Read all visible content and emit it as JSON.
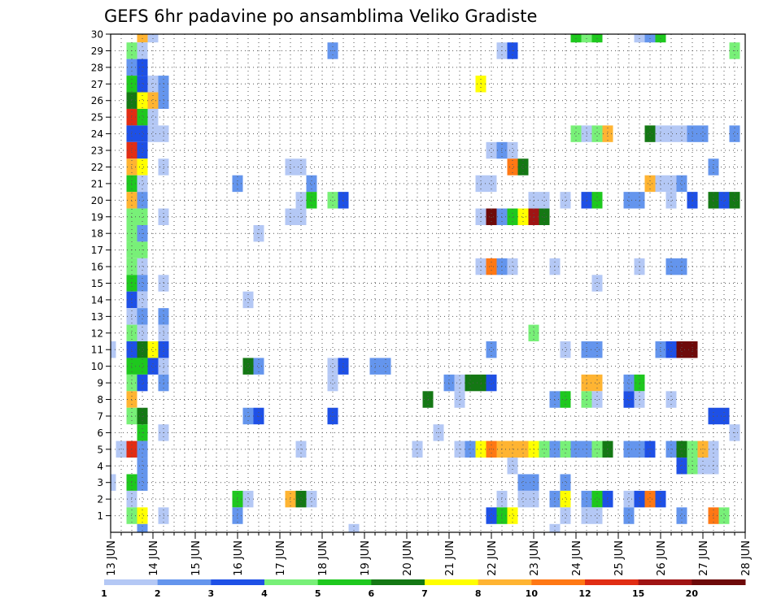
{
  "chart_data": {
    "type": "heatmap",
    "title": "GEFS 6hr padavine po ansamblima Veliko Gradiste",
    "xlabel": "",
    "ylabel": "",
    "x_tick_labels": [
      "13 JUN",
      "14 JUN",
      "15 JUN",
      "16 JUN",
      "17 JUN",
      "18 JUN",
      "19 JUN",
      "20 JUN",
      "21 JUN",
      "22 JUN",
      "23 JUN",
      "24 JUN",
      "25 JUN",
      "26 JUN",
      "27 JUN",
      "28 JUN"
    ],
    "y_tick_labels": [
      "1",
      "2",
      "3",
      "4",
      "5",
      "6",
      "7",
      "8",
      "9",
      "10",
      "11",
      "12",
      "13",
      "14",
      "15",
      "16",
      "17",
      "18",
      "19",
      "20",
      "21",
      "22",
      "23",
      "24",
      "25",
      "26",
      "27",
      "28",
      "29",
      "30"
    ],
    "xlim_days": [
      13,
      28
    ],
    "ylim_members": [
      0,
      30
    ],
    "grid": "dotted",
    "colorbar": {
      "tick_labels": [
        "1",
        "2",
        "3",
        "4",
        "5",
        "6",
        "7",
        "8",
        "10",
        "12",
        "15",
        "20"
      ],
      "colors": [
        "#b4c8f5",
        "#6495ed",
        "#1e50e6",
        "#78f078",
        "#1ec81e",
        "#147814",
        "#ffff00",
        "#ffb432",
        "#ff7814",
        "#e12d14",
        "#a01414",
        "#6e0a0a"
      ]
    },
    "cells": [
      [
        30,
        13.75,
        "#ffb432"
      ],
      [
        30,
        14.0,
        "#b4c8f5"
      ],
      [
        30,
        24.0,
        "#1ec81e"
      ],
      [
        30,
        24.25,
        "#78f078"
      ],
      [
        30,
        24.5,
        "#1ec81e"
      ],
      [
        30,
        25.5,
        "#b4c8f5"
      ],
      [
        30,
        25.75,
        "#6495ed"
      ],
      [
        30,
        26.0,
        "#1ec81e"
      ],
      [
        29,
        13.5,
        "#78f078"
      ],
      [
        29,
        13.75,
        "#b4c8f5"
      ],
      [
        29,
        18.25,
        "#6495ed"
      ],
      [
        29,
        22.25,
        "#b4c8f5"
      ],
      [
        29,
        22.5,
        "#1e50e6"
      ],
      [
        29,
        27.75,
        "#78f078"
      ],
      [
        28,
        13.5,
        "#6495ed"
      ],
      [
        28,
        13.75,
        "#1e50e6"
      ],
      [
        27,
        13.5,
        "#1ec81e"
      ],
      [
        27,
        13.75,
        "#1e50e6"
      ],
      [
        27,
        14.0,
        "#b4c8f5"
      ],
      [
        27,
        14.25,
        "#6495ed"
      ],
      [
        27,
        21.75,
        "#ffff00"
      ],
      [
        26,
        13.5,
        "#147814"
      ],
      [
        26,
        13.75,
        "#ffff00"
      ],
      [
        26,
        14.0,
        "#ffb432"
      ],
      [
        26,
        14.25,
        "#6495ed"
      ],
      [
        25,
        13.5,
        "#e12d14"
      ],
      [
        25,
        13.75,
        "#1ec81e"
      ],
      [
        25,
        14.0,
        "#b4c8f5"
      ],
      [
        24,
        13.5,
        "#1e50e6"
      ],
      [
        24,
        13.75,
        "#1e50e6"
      ],
      [
        24,
        14.0,
        "#b4c8f5"
      ],
      [
        24,
        14.25,
        "#b4c8f5"
      ],
      [
        24,
        24.0,
        "#78f078"
      ],
      [
        24,
        24.25,
        "#b4c8f5"
      ],
      [
        24,
        24.5,
        "#78f078"
      ],
      [
        24,
        24.75,
        "#ffb432"
      ],
      [
        24,
        25.75,
        "#147814"
      ],
      [
        24,
        26.0,
        "#b4c8f5"
      ],
      [
        24,
        26.25,
        "#b4c8f5"
      ],
      [
        24,
        26.5,
        "#b4c8f5"
      ],
      [
        24,
        26.75,
        "#6495ed"
      ],
      [
        24,
        27.0,
        "#6495ed"
      ],
      [
        24,
        27.75,
        "#6495ed"
      ],
      [
        23,
        13.5,
        "#e12d14"
      ],
      [
        23,
        13.75,
        "#1e50e6"
      ],
      [
        23,
        22.0,
        "#b4c8f5"
      ],
      [
        23,
        22.25,
        "#6495ed"
      ],
      [
        23,
        22.5,
        "#b4c8f5"
      ],
      [
        22,
        13.5,
        "#ffb432"
      ],
      [
        22,
        13.75,
        "#ffff00"
      ],
      [
        22,
        14.25,
        "#b4c8f5"
      ],
      [
        22,
        17.25,
        "#b4c8f5"
      ],
      [
        22,
        17.5,
        "#b4c8f5"
      ],
      [
        22,
        22.5,
        "#ff7814"
      ],
      [
        22,
        22.75,
        "#147814"
      ],
      [
        22,
        27.25,
        "#6495ed"
      ],
      [
        21,
        13.5,
        "#1ec81e"
      ],
      [
        21,
        13.75,
        "#b4c8f5"
      ],
      [
        21,
        16.0,
        "#6495ed"
      ],
      [
        21,
        17.75,
        "#6495ed"
      ],
      [
        21,
        21.75,
        "#b4c8f5"
      ],
      [
        21,
        22.0,
        "#b4c8f5"
      ],
      [
        21,
        25.75,
        "#ffb432"
      ],
      [
        21,
        26.0,
        "#b4c8f5"
      ],
      [
        21,
        26.25,
        "#b4c8f5"
      ],
      [
        21,
        26.5,
        "#6495ed"
      ],
      [
        20,
        13.5,
        "#ffb432"
      ],
      [
        20,
        13.75,
        "#6495ed"
      ],
      [
        20,
        17.5,
        "#b4c8f5"
      ],
      [
        20,
        17.75,
        "#1ec81e"
      ],
      [
        20,
        18.25,
        "#78f078"
      ],
      [
        20,
        18.5,
        "#1e50e6"
      ],
      [
        20,
        23.0,
        "#b4c8f5"
      ],
      [
        20,
        23.25,
        "#b4c8f5"
      ],
      [
        20,
        23.75,
        "#b4c8f5"
      ],
      [
        20,
        24.25,
        "#1e50e6"
      ],
      [
        20,
        24.5,
        "#1ec81e"
      ],
      [
        20,
        25.25,
        "#6495ed"
      ],
      [
        20,
        25.5,
        "#6495ed"
      ],
      [
        20,
        26.25,
        "#b4c8f5"
      ],
      [
        20,
        26.75,
        "#1e50e6"
      ],
      [
        20,
        27.25,
        "#147814"
      ],
      [
        20,
        27.5,
        "#1e50e6"
      ],
      [
        20,
        27.75,
        "#147814"
      ],
      [
        19,
        13.5,
        "#78f078"
      ],
      [
        19,
        13.75,
        "#78f078"
      ],
      [
        19,
        14.25,
        "#b4c8f5"
      ],
      [
        19,
        17.25,
        "#b4c8f5"
      ],
      [
        19,
        17.5,
        "#b4c8f5"
      ],
      [
        19,
        21.75,
        "#b4c8f5"
      ],
      [
        19,
        22.0,
        "#6e0a0a"
      ],
      [
        19,
        22.25,
        "#6495ed"
      ],
      [
        19,
        22.5,
        "#1ec81e"
      ],
      [
        19,
        22.75,
        "#ffff00"
      ],
      [
        19,
        23.0,
        "#a01414"
      ],
      [
        19,
        23.25,
        "#147814"
      ],
      [
        18,
        13.5,
        "#78f078"
      ],
      [
        18,
        13.75,
        "#6495ed"
      ],
      [
        18,
        16.5,
        "#b4c8f5"
      ],
      [
        17,
        13.5,
        "#78f078"
      ],
      [
        17,
        13.75,
        "#78f078"
      ],
      [
        16,
        13.5,
        "#78f078"
      ],
      [
        16,
        13.75,
        "#b4c8f5"
      ],
      [
        16,
        21.75,
        "#b4c8f5"
      ],
      [
        16,
        22.0,
        "#ff7814"
      ],
      [
        16,
        22.25,
        "#6495ed"
      ],
      [
        16,
        22.5,
        "#b4c8f5"
      ],
      [
        16,
        23.5,
        "#b4c8f5"
      ],
      [
        16,
        25.5,
        "#b4c8f5"
      ],
      [
        16,
        26.25,
        "#6495ed"
      ],
      [
        16,
        26.5,
        "#6495ed"
      ],
      [
        15,
        13.5,
        "#1ec81e"
      ],
      [
        15,
        13.75,
        "#6495ed"
      ],
      [
        15,
        14.25,
        "#b4c8f5"
      ],
      [
        15,
        24.5,
        "#b4c8f5"
      ],
      [
        14,
        13.5,
        "#1e50e6"
      ],
      [
        14,
        13.75,
        "#b4c8f5"
      ],
      [
        14,
        16.25,
        "#b4c8f5"
      ],
      [
        13,
        13.5,
        "#b4c8f5"
      ],
      [
        13,
        13.75,
        "#6495ed"
      ],
      [
        13,
        14.25,
        "#6495ed"
      ],
      [
        12,
        13.5,
        "#78f078"
      ],
      [
        12,
        13.75,
        "#b4c8f5"
      ],
      [
        12,
        14.25,
        "#b4c8f5"
      ],
      [
        12,
        23.0,
        "#78f078"
      ],
      [
        11,
        13.0,
        "#b4c8f5"
      ],
      [
        11,
        13.5,
        "#1e50e6"
      ],
      [
        11,
        13.75,
        "#147814"
      ],
      [
        11,
        14.0,
        "#ffff00"
      ],
      [
        11,
        14.25,
        "#1e50e6"
      ],
      [
        11,
        22.0,
        "#6495ed"
      ],
      [
        11,
        23.75,
        "#b4c8f5"
      ],
      [
        11,
        24.25,
        "#6495ed"
      ],
      [
        11,
        24.5,
        "#6495ed"
      ],
      [
        11,
        26.0,
        "#6495ed"
      ],
      [
        11,
        26.25,
        "#1e50e6"
      ],
      [
        11,
        26.5,
        "#6e0a0a"
      ],
      [
        11,
        26.75,
        "#6e0a0a"
      ],
      [
        10,
        13.5,
        "#1ec81e"
      ],
      [
        10,
        13.75,
        "#1ec81e"
      ],
      [
        10,
        14.0,
        "#1e50e6"
      ],
      [
        10,
        14.25,
        "#b4c8f5"
      ],
      [
        10,
        16.25,
        "#147814"
      ],
      [
        10,
        16.5,
        "#6495ed"
      ],
      [
        10,
        18.25,
        "#b4c8f5"
      ],
      [
        10,
        18.5,
        "#1e50e6"
      ],
      [
        10,
        19.25,
        "#6495ed"
      ],
      [
        10,
        19.5,
        "#6495ed"
      ],
      [
        9,
        13.5,
        "#78f078"
      ],
      [
        9,
        13.75,
        "#1e50e6"
      ],
      [
        9,
        14.25,
        "#6495ed"
      ],
      [
        9,
        18.25,
        "#b4c8f5"
      ],
      [
        9,
        21.0,
        "#6495ed"
      ],
      [
        9,
        21.25,
        "#b4c8f5"
      ],
      [
        9,
        21.5,
        "#147814"
      ],
      [
        9,
        21.75,
        "#147814"
      ],
      [
        9,
        22.0,
        "#1e50e6"
      ],
      [
        9,
        24.25,
        "#ffb432"
      ],
      [
        9,
        24.5,
        "#ffb432"
      ],
      [
        9,
        25.25,
        "#6495ed"
      ],
      [
        9,
        25.5,
        "#1ec81e"
      ],
      [
        8,
        13.5,
        "#ffb432"
      ],
      [
        8,
        20.5,
        "#147814"
      ],
      [
        8,
        21.25,
        "#b4c8f5"
      ],
      [
        8,
        23.5,
        "#6495ed"
      ],
      [
        8,
        23.75,
        "#1ec81e"
      ],
      [
        8,
        24.25,
        "#78f078"
      ],
      [
        8,
        24.5,
        "#b4c8f5"
      ],
      [
        8,
        25.25,
        "#1e50e6"
      ],
      [
        8,
        25.5,
        "#b4c8f5"
      ],
      [
        8,
        26.25,
        "#b4c8f5"
      ],
      [
        7,
        13.5,
        "#78f078"
      ],
      [
        7,
        13.75,
        "#147814"
      ],
      [
        7,
        16.25,
        "#6495ed"
      ],
      [
        7,
        16.5,
        "#1e50e6"
      ],
      [
        7,
        18.25,
        "#1e50e6"
      ],
      [
        7,
        27.25,
        "#1e50e6"
      ],
      [
        7,
        27.5,
        "#1e50e6"
      ],
      [
        6,
        13.75,
        "#1ec81e"
      ],
      [
        6,
        14.25,
        "#b4c8f5"
      ],
      [
        6,
        20.75,
        "#b4c8f5"
      ],
      [
        6,
        27.75,
        "#b4c8f5"
      ],
      [
        5,
        13.25,
        "#b4c8f5"
      ],
      [
        5,
        13.5,
        "#e12d14"
      ],
      [
        5,
        13.75,
        "#6495ed"
      ],
      [
        5,
        17.5,
        "#b4c8f5"
      ],
      [
        5,
        20.25,
        "#b4c8f5"
      ],
      [
        5,
        21.25,
        "#b4c8f5"
      ],
      [
        5,
        21.5,
        "#6495ed"
      ],
      [
        5,
        21.75,
        "#ffff00"
      ],
      [
        5,
        22.0,
        "#ff7814"
      ],
      [
        5,
        22.25,
        "#ffb432"
      ],
      [
        5,
        22.5,
        "#ffb432"
      ],
      [
        5,
        22.75,
        "#ffb432"
      ],
      [
        5,
        23.0,
        "#ffff00"
      ],
      [
        5,
        23.25,
        "#78f078"
      ],
      [
        5,
        23.5,
        "#6495ed"
      ],
      [
        5,
        23.75,
        "#78f078"
      ],
      [
        5,
        24.0,
        "#6495ed"
      ],
      [
        5,
        24.25,
        "#6495ed"
      ],
      [
        5,
        24.5,
        "#78f078"
      ],
      [
        5,
        24.75,
        "#147814"
      ],
      [
        5,
        25.25,
        "#6495ed"
      ],
      [
        5,
        25.5,
        "#6495ed"
      ],
      [
        5,
        25.75,
        "#1e50e6"
      ],
      [
        5,
        26.25,
        "#6495ed"
      ],
      [
        5,
        26.5,
        "#147814"
      ],
      [
        5,
        26.75,
        "#78f078"
      ],
      [
        5,
        27.0,
        "#ffb432"
      ],
      [
        5,
        27.25,
        "#b4c8f5"
      ],
      [
        4,
        13.75,
        "#6495ed"
      ],
      [
        4,
        22.5,
        "#b4c8f5"
      ],
      [
        4,
        26.5,
        "#1e50e6"
      ],
      [
        4,
        26.75,
        "#78f078"
      ],
      [
        4,
        27.0,
        "#b4c8f5"
      ],
      [
        4,
        27.25,
        "#b4c8f5"
      ],
      [
        3,
        13.0,
        "#b4c8f5"
      ],
      [
        3,
        13.5,
        "#1ec81e"
      ],
      [
        3,
        13.75,
        "#6495ed"
      ],
      [
        3,
        22.75,
        "#6495ed"
      ],
      [
        3,
        23.0,
        "#6495ed"
      ],
      [
        3,
        23.75,
        "#6495ed"
      ],
      [
        2,
        13.5,
        "#b4c8f5"
      ],
      [
        2,
        16.0,
        "#1ec81e"
      ],
      [
        2,
        16.25,
        "#b4c8f5"
      ],
      [
        2,
        17.25,
        "#ffb432"
      ],
      [
        2,
        17.5,
        "#147814"
      ],
      [
        2,
        17.75,
        "#b4c8f5"
      ],
      [
        2,
        22.25,
        "#b4c8f5"
      ],
      [
        2,
        22.75,
        "#b4c8f5"
      ],
      [
        2,
        23.0,
        "#b4c8f5"
      ],
      [
        2,
        23.5,
        "#6495ed"
      ],
      [
        2,
        23.75,
        "#ffff00"
      ],
      [
        2,
        24.25,
        "#6495ed"
      ],
      [
        2,
        24.5,
        "#1ec81e"
      ],
      [
        2,
        24.75,
        "#1e50e6"
      ],
      [
        2,
        25.25,
        "#b4c8f5"
      ],
      [
        2,
        25.5,
        "#1e50e6"
      ],
      [
        2,
        25.75,
        "#ff7814"
      ],
      [
        2,
        26.0,
        "#1e50e6"
      ],
      [
        1,
        13.5,
        "#78f078"
      ],
      [
        1,
        13.75,
        "#ffff00"
      ],
      [
        1,
        14.25,
        "#b4c8f5"
      ],
      [
        1,
        16.0,
        "#6495ed"
      ],
      [
        1,
        22.0,
        "#1e50e6"
      ],
      [
        1,
        22.25,
        "#1ec81e"
      ],
      [
        1,
        22.5,
        "#ffff00"
      ],
      [
        1,
        23.75,
        "#b4c8f5"
      ],
      [
        1,
        24.25,
        "#b4c8f5"
      ],
      [
        1,
        24.5,
        "#b4c8f5"
      ],
      [
        1,
        25.25,
        "#6495ed"
      ],
      [
        1,
        26.5,
        "#6495ed"
      ],
      [
        1,
        27.25,
        "#ff7814"
      ],
      [
        1,
        27.5,
        "#78f078"
      ],
      [
        0,
        13.75,
        "#6495ed"
      ],
      [
        0,
        18.75,
        "#b4c8f5"
      ],
      [
        0,
        23.5,
        "#b4c8f5"
      ]
    ]
  }
}
